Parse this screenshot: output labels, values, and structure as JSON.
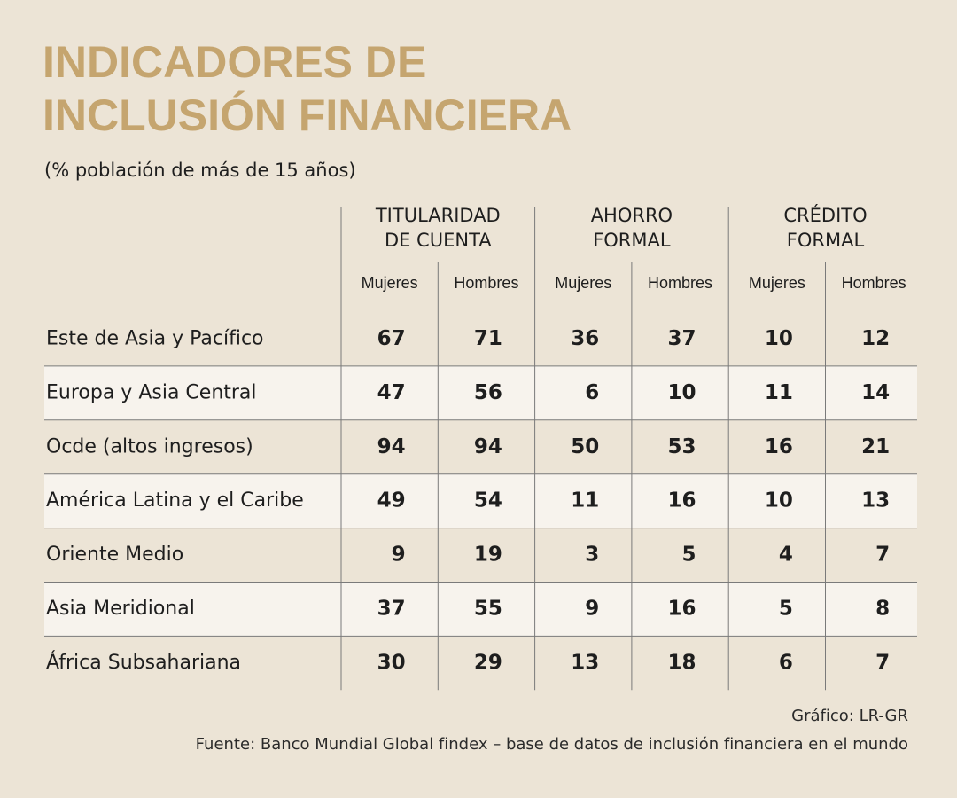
{
  "header": {
    "title_lines": [
      "INDICADORES DE",
      "INCLUSIÓN FINANCIERA"
    ],
    "subtitle": "(% población de más de 15 años)"
  },
  "table": {
    "groups": [
      [
        "TITULARIDAD",
        "DE CUENTA"
      ],
      [
        "AHORRO",
        "FORMAL"
      ],
      [
        "CRÉDITO",
        "FORMAL"
      ]
    ],
    "subheaders": [
      "Mujeres",
      "Hombres",
      "Mujeres",
      "Hombres",
      "Mujeres",
      "Hombres"
    ],
    "rows": [
      {
        "label": "Este de Asia y Pacífico",
        "values": [
          67,
          71,
          36,
          37,
          10,
          12
        ]
      },
      {
        "label": "Europa y Asia Central",
        "values": [
          47,
          56,
          6,
          10,
          11,
          14
        ]
      },
      {
        "label": "Ocde (altos ingresos)",
        "values": [
          94,
          94,
          50,
          53,
          16,
          21
        ]
      },
      {
        "label": "América Latina y el Caribe",
        "values": [
          49,
          54,
          11,
          16,
          10,
          13
        ]
      },
      {
        "label": "Oriente Medio",
        "values": [
          9,
          19,
          3,
          5,
          4,
          7
        ]
      },
      {
        "label": "Asia Meridional",
        "values": [
          37,
          55,
          9,
          16,
          5,
          8
        ]
      },
      {
        "label": "África Subsahariana",
        "values": [
          30,
          29,
          13,
          18,
          6,
          7
        ]
      }
    ]
  },
  "footer": {
    "credit": "Gráfico: LR-GR",
    "source": "Fuente: Banco Mundial Global findex – base de datos de inclusión financiera en el mundo"
  }
}
